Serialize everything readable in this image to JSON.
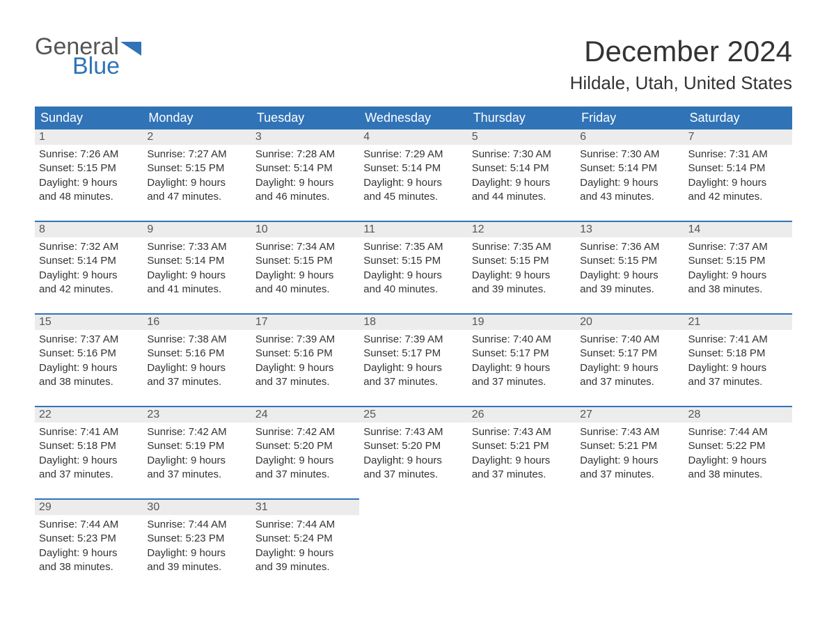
{
  "brand": {
    "word1": "General",
    "word2": "Blue",
    "flag_color": "#3173b7",
    "word1_color": "#555555",
    "word2_color": "#3173b7"
  },
  "title": {
    "month": "December 2024",
    "location": "Hildale, Utah, United States"
  },
  "weekdays": [
    "Sunday",
    "Monday",
    "Tuesday",
    "Wednesday",
    "Thursday",
    "Friday",
    "Saturday"
  ],
  "style": {
    "header_bg": "#3173b7",
    "header_text": "#ffffff",
    "row_rule": "#3173b7",
    "daynum_bg": "#ececec",
    "body_text": "#333333",
    "page_bg": "#ffffff",
    "body_fontsize": 15,
    "header_fontsize": 18,
    "month_fontsize": 42,
    "location_fontsize": 26
  },
  "weeks": [
    [
      {
        "n": "1",
        "sunrise": "Sunrise: 7:26 AM",
        "sunset": "Sunset: 5:15 PM",
        "d1": "Daylight: 9 hours",
        "d2": "and 48 minutes."
      },
      {
        "n": "2",
        "sunrise": "Sunrise: 7:27 AM",
        "sunset": "Sunset: 5:15 PM",
        "d1": "Daylight: 9 hours",
        "d2": "and 47 minutes."
      },
      {
        "n": "3",
        "sunrise": "Sunrise: 7:28 AM",
        "sunset": "Sunset: 5:14 PM",
        "d1": "Daylight: 9 hours",
        "d2": "and 46 minutes."
      },
      {
        "n": "4",
        "sunrise": "Sunrise: 7:29 AM",
        "sunset": "Sunset: 5:14 PM",
        "d1": "Daylight: 9 hours",
        "d2": "and 45 minutes."
      },
      {
        "n": "5",
        "sunrise": "Sunrise: 7:30 AM",
        "sunset": "Sunset: 5:14 PM",
        "d1": "Daylight: 9 hours",
        "d2": "and 44 minutes."
      },
      {
        "n": "6",
        "sunrise": "Sunrise: 7:30 AM",
        "sunset": "Sunset: 5:14 PM",
        "d1": "Daylight: 9 hours",
        "d2": "and 43 minutes."
      },
      {
        "n": "7",
        "sunrise": "Sunrise: 7:31 AM",
        "sunset": "Sunset: 5:14 PM",
        "d1": "Daylight: 9 hours",
        "d2": "and 42 minutes."
      }
    ],
    [
      {
        "n": "8",
        "sunrise": "Sunrise: 7:32 AM",
        "sunset": "Sunset: 5:14 PM",
        "d1": "Daylight: 9 hours",
        "d2": "and 42 minutes."
      },
      {
        "n": "9",
        "sunrise": "Sunrise: 7:33 AM",
        "sunset": "Sunset: 5:14 PM",
        "d1": "Daylight: 9 hours",
        "d2": "and 41 minutes."
      },
      {
        "n": "10",
        "sunrise": "Sunrise: 7:34 AM",
        "sunset": "Sunset: 5:15 PM",
        "d1": "Daylight: 9 hours",
        "d2": "and 40 minutes."
      },
      {
        "n": "11",
        "sunrise": "Sunrise: 7:35 AM",
        "sunset": "Sunset: 5:15 PM",
        "d1": "Daylight: 9 hours",
        "d2": "and 40 minutes."
      },
      {
        "n": "12",
        "sunrise": "Sunrise: 7:35 AM",
        "sunset": "Sunset: 5:15 PM",
        "d1": "Daylight: 9 hours",
        "d2": "and 39 minutes."
      },
      {
        "n": "13",
        "sunrise": "Sunrise: 7:36 AM",
        "sunset": "Sunset: 5:15 PM",
        "d1": "Daylight: 9 hours",
        "d2": "and 39 minutes."
      },
      {
        "n": "14",
        "sunrise": "Sunrise: 7:37 AM",
        "sunset": "Sunset: 5:15 PM",
        "d1": "Daylight: 9 hours",
        "d2": "and 38 minutes."
      }
    ],
    [
      {
        "n": "15",
        "sunrise": "Sunrise: 7:37 AM",
        "sunset": "Sunset: 5:16 PM",
        "d1": "Daylight: 9 hours",
        "d2": "and 38 minutes."
      },
      {
        "n": "16",
        "sunrise": "Sunrise: 7:38 AM",
        "sunset": "Sunset: 5:16 PM",
        "d1": "Daylight: 9 hours",
        "d2": "and 37 minutes."
      },
      {
        "n": "17",
        "sunrise": "Sunrise: 7:39 AM",
        "sunset": "Sunset: 5:16 PM",
        "d1": "Daylight: 9 hours",
        "d2": "and 37 minutes."
      },
      {
        "n": "18",
        "sunrise": "Sunrise: 7:39 AM",
        "sunset": "Sunset: 5:17 PM",
        "d1": "Daylight: 9 hours",
        "d2": "and 37 minutes."
      },
      {
        "n": "19",
        "sunrise": "Sunrise: 7:40 AM",
        "sunset": "Sunset: 5:17 PM",
        "d1": "Daylight: 9 hours",
        "d2": "and 37 minutes."
      },
      {
        "n": "20",
        "sunrise": "Sunrise: 7:40 AM",
        "sunset": "Sunset: 5:17 PM",
        "d1": "Daylight: 9 hours",
        "d2": "and 37 minutes."
      },
      {
        "n": "21",
        "sunrise": "Sunrise: 7:41 AM",
        "sunset": "Sunset: 5:18 PM",
        "d1": "Daylight: 9 hours",
        "d2": "and 37 minutes."
      }
    ],
    [
      {
        "n": "22",
        "sunrise": "Sunrise: 7:41 AM",
        "sunset": "Sunset: 5:18 PM",
        "d1": "Daylight: 9 hours",
        "d2": "and 37 minutes."
      },
      {
        "n": "23",
        "sunrise": "Sunrise: 7:42 AM",
        "sunset": "Sunset: 5:19 PM",
        "d1": "Daylight: 9 hours",
        "d2": "and 37 minutes."
      },
      {
        "n": "24",
        "sunrise": "Sunrise: 7:42 AM",
        "sunset": "Sunset: 5:20 PM",
        "d1": "Daylight: 9 hours",
        "d2": "and 37 minutes."
      },
      {
        "n": "25",
        "sunrise": "Sunrise: 7:43 AM",
        "sunset": "Sunset: 5:20 PM",
        "d1": "Daylight: 9 hours",
        "d2": "and 37 minutes."
      },
      {
        "n": "26",
        "sunrise": "Sunrise: 7:43 AM",
        "sunset": "Sunset: 5:21 PM",
        "d1": "Daylight: 9 hours",
        "d2": "and 37 minutes."
      },
      {
        "n": "27",
        "sunrise": "Sunrise: 7:43 AM",
        "sunset": "Sunset: 5:21 PM",
        "d1": "Daylight: 9 hours",
        "d2": "and 37 minutes."
      },
      {
        "n": "28",
        "sunrise": "Sunrise: 7:44 AM",
        "sunset": "Sunset: 5:22 PM",
        "d1": "Daylight: 9 hours",
        "d2": "and 38 minutes."
      }
    ],
    [
      {
        "n": "29",
        "sunrise": "Sunrise: 7:44 AM",
        "sunset": "Sunset: 5:23 PM",
        "d1": "Daylight: 9 hours",
        "d2": "and 38 minutes."
      },
      {
        "n": "30",
        "sunrise": "Sunrise: 7:44 AM",
        "sunset": "Sunset: 5:23 PM",
        "d1": "Daylight: 9 hours",
        "d2": "and 39 minutes."
      },
      {
        "n": "31",
        "sunrise": "Sunrise: 7:44 AM",
        "sunset": "Sunset: 5:24 PM",
        "d1": "Daylight: 9 hours",
        "d2": "and 39 minutes."
      },
      null,
      null,
      null,
      null
    ]
  ]
}
